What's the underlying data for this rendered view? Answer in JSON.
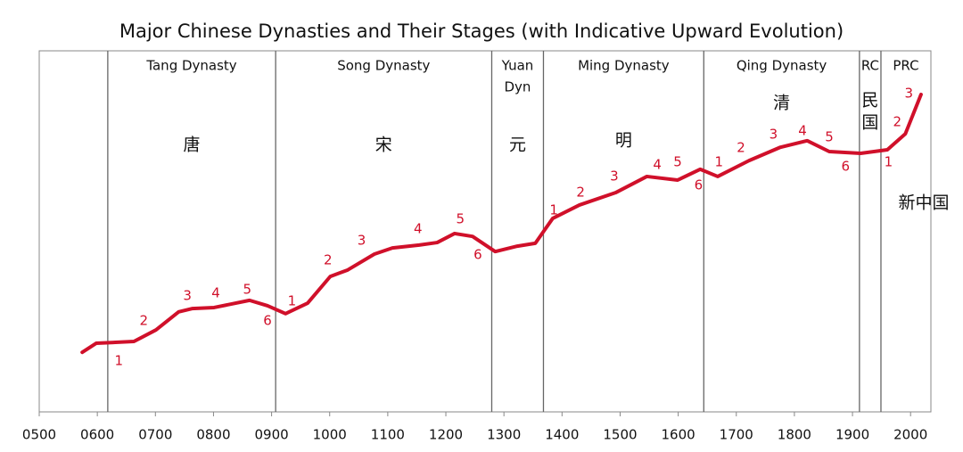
{
  "chart_data": {
    "type": "line",
    "title": "Major Chinese Dynasties and Their Stages (with Indicative Upward Evolution)",
    "xlim": [
      500,
      2035
    ],
    "ylim": [
      0,
      100
    ],
    "xticks": [
      {
        "value": 500,
        "label": "0500"
      },
      {
        "value": 600,
        "label": "0600"
      },
      {
        "value": 700,
        "label": "0700"
      },
      {
        "value": 800,
        "label": "0800"
      },
      {
        "value": 900,
        "label": "0900"
      },
      1000,
      1100,
      1200,
      1300,
      1400,
      1500,
      1600,
      1700,
      1800,
      1900,
      2000
    ],
    "boundaries": [
      618,
      907,
      1279,
      1368,
      1644,
      1912,
      1949
    ],
    "regions": [
      {
        "name": [
          "Tang Dynasty"
        ],
        "chinese": [
          "唐"
        ]
      },
      {
        "name": [
          "Song Dynasty"
        ],
        "chinese": [
          "宋"
        ]
      },
      {
        "name": [
          "Yuan",
          "Dyn"
        ],
        "chinese": [
          "元"
        ]
      },
      {
        "name": [
          "Ming Dynasty"
        ],
        "chinese": [
          "明"
        ]
      },
      {
        "name": [
          "Qing Dynasty"
        ],
        "chinese": [
          "清"
        ]
      },
      {
        "name": [
          "RC"
        ],
        "chinese": [
          "民",
          "国"
        ]
      },
      {
        "name": [
          "PRC"
        ],
        "chinese": [
          "新中国"
        ]
      }
    ],
    "series": [
      {
        "color": "#d0102a",
        "x": [
          574,
          598,
          663,
          701,
          740,
          763,
          801,
          862,
          893,
          924,
          962,
          1001,
          1031,
          1077,
          1108,
          1154,
          1185,
          1215,
          1246,
          1285,
          1323,
          1354,
          1384,
          1430,
          1492,
          1546,
          1599,
          1638,
          1668,
          1722,
          1776,
          1822,
          1860,
          1914,
          1960,
          1991,
          2018
        ],
        "values": [
          16.5,
          19.0,
          19.5,
          22.7,
          27.7,
          28.6,
          28.9,
          30.9,
          29.4,
          27.2,
          30.1,
          37.5,
          39.3,
          43.7,
          45.4,
          46.2,
          46.9,
          49.4,
          48.6,
          44.4,
          45.9,
          46.7,
          53.6,
          57.3,
          60.7,
          65.2,
          64.2,
          67.2,
          65.2,
          69.6,
          73.3,
          75.1,
          72.1,
          71.6,
          72.6,
          77.0,
          87.9
        ]
      }
    ],
    "stage_labels": [
      {
        "text": "1",
        "x": 637,
        "y": 14.1
      },
      {
        "text": "2",
        "x": 680,
        "y": 25.2
      },
      {
        "text": "3",
        "x": 755,
        "y": 32.1
      },
      {
        "text": "4",
        "x": 804,
        "y": 32.8
      },
      {
        "text": "5",
        "x": 858,
        "y": 33.8
      },
      {
        "text": "6",
        "x": 893,
        "y": 25.2
      },
      {
        "text": "1",
        "x": 935,
        "y": 30.6
      },
      {
        "text": "2",
        "x": 997,
        "y": 42.0
      },
      {
        "text": "3",
        "x": 1055,
        "y": 47.4
      },
      {
        "text": "4",
        "x": 1152,
        "y": 50.6
      },
      {
        "text": "5",
        "x": 1225,
        "y": 53.3
      },
      {
        "text": "6",
        "x": 1255,
        "y": 43.5
      },
      {
        "text": "1",
        "x": 1386,
        "y": 55.8
      },
      {
        "text": "2",
        "x": 1432,
        "y": 60.7
      },
      {
        "text": "3",
        "x": 1490,
        "y": 65.2
      },
      {
        "text": "4",
        "x": 1564,
        "y": 68.4
      },
      {
        "text": "5",
        "x": 1599,
        "y": 69.1
      },
      {
        "text": "6",
        "x": 1635,
        "y": 62.7
      },
      {
        "text": "1",
        "x": 1670,
        "y": 69.1
      },
      {
        "text": "2",
        "x": 1708,
        "y": 73.1
      },
      {
        "text": "3",
        "x": 1764,
        "y": 76.8
      },
      {
        "text": "4",
        "x": 1814,
        "y": 77.8
      },
      {
        "text": "5",
        "x": 1860,
        "y": 76.0
      },
      {
        "text": "6",
        "x": 1888,
        "y": 67.9
      },
      {
        "text": "1",
        "x": 1962,
        "y": 69.1
      },
      {
        "text": "2",
        "x": 1977,
        "y": 80.2
      },
      {
        "text": "3",
        "x": 1997,
        "y": 88.1
      }
    ]
  }
}
